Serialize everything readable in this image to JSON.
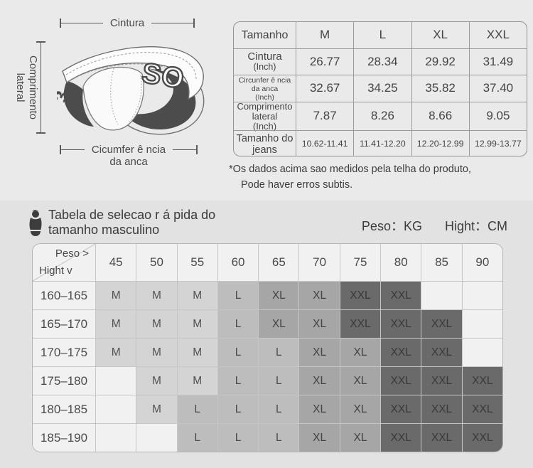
{
  "colors": {
    "page_bg_top": "#eaeaea",
    "page_bg_bottom": "#e2e2e2",
    "line_color": "#5a5a5a",
    "table_border": "#9b9b9b",
    "grid_border": "#c6c6c6",
    "size_m_bg": "#d4d4d4",
    "size_l_bg": "#bdbdbd",
    "size_xl_bg": "#a6a6a6",
    "size_xxl_bg": "#6a6a6a",
    "empty_cell_bg": "#f1f1f1",
    "dark_band": "#4c4c4c"
  },
  "diagram": {
    "waist_label": "Cintura",
    "side_length_label": [
      "Comprimento",
      "lateral"
    ],
    "hip_label": [
      "Cicumfer ê ncia",
      "da anca"
    ],
    "waistband_logo": "SO",
    "waistband_left_mark": "3"
  },
  "size_table": {
    "header": [
      "Tamanho",
      "M",
      "L",
      "XL",
      "XXL"
    ],
    "rows": [
      {
        "label_lines": [
          "Cintura",
          "(Inch)"
        ],
        "values": [
          "26.77",
          "28.34",
          "29.92",
          "31.49"
        ]
      },
      {
        "label_lines": [
          "Circunfer ê ncia",
          "da anca",
          "(Inch)"
        ],
        "values": [
          "32.67",
          "34.25",
          "35.82",
          "37.40"
        ]
      },
      {
        "label_lines": [
          "Comprimento",
          "lateral",
          "(Inch)"
        ],
        "values": [
          "7.87",
          "8.26",
          "8.66",
          "9.05"
        ]
      },
      {
        "label_lines": [
          "Tamanho do",
          "jeans"
        ],
        "values": [
          "10.62-11.41",
          "11.41-12.20",
          "12.20-12.99",
          "12.99-13.77"
        ]
      }
    ],
    "footnote_lines": [
      "*Os dados acima sao medidos pela telha do produto,",
      "Pode haver erros subtis."
    ]
  },
  "selection": {
    "title_lines": [
      "Tabela de selecao r á pida do",
      "tamanho masculino"
    ],
    "units": [
      {
        "label": "Peso：",
        "value": "KG"
      },
      {
        "label": "Hight：",
        "value": "CM"
      }
    ],
    "grid": {
      "corner": {
        "top": "Peso >",
        "bottom": "Hight v"
      },
      "weights": [
        "45",
        "50",
        "55",
        "60",
        "65",
        "70",
        "75",
        "80",
        "85",
        "90"
      ],
      "rows": [
        {
          "height": "160–165",
          "cells": [
            "M",
            "M",
            "M",
            "L",
            "XL",
            "XL",
            "XXL",
            "XXL",
            "",
            ""
          ]
        },
        {
          "height": "165–170",
          "cells": [
            "M",
            "M",
            "M",
            "L",
            "XL",
            "XL",
            "XXL",
            "XXL",
            "XXL",
            ""
          ]
        },
        {
          "height": "170–175",
          "cells": [
            "M",
            "M",
            "M",
            "L",
            "L",
            "XL",
            "XL",
            "XXL",
            "XXL",
            ""
          ]
        },
        {
          "height": "175–180",
          "cells": [
            "",
            "M",
            "M",
            "L",
            "L",
            "XL",
            "XL",
            "XXL",
            "XXL",
            "XXL"
          ]
        },
        {
          "height": "180–185",
          "cells": [
            "",
            "M",
            "L",
            "L",
            "L",
            "XL",
            "XL",
            "XXL",
            "XXL",
            "XXL"
          ]
        },
        {
          "height": "185–190",
          "cells": [
            "",
            "",
            "L",
            "L",
            "L",
            "XL",
            "XL",
            "XXL",
            "XXL",
            "XXL"
          ]
        }
      ]
    }
  },
  "chart_data": [
    {
      "type": "table",
      "title": "Tamanho (size measurements)",
      "columns": [
        "Tamanho",
        "M",
        "L",
        "XL",
        "XXL"
      ],
      "rows": [
        [
          "Cintura (Inch)",
          26.77,
          28.34,
          29.92,
          31.49
        ],
        [
          "Circunfer ê ncia da anca (Inch)",
          32.67,
          34.25,
          35.82,
          37.4
        ],
        [
          "Comprimento lateral (Inch)",
          7.87,
          8.26,
          8.66,
          9.05
        ],
        [
          "Tamanho do jeans",
          "10.62-11.41",
          "11.41-12.20",
          "12.20-12.99",
          "12.99-13.77"
        ]
      ]
    },
    {
      "type": "table",
      "title": "Tabela de selecao r á pida do tamanho masculino",
      "xlabel": "Peso (KG)",
      "ylabel": "Hight (CM)",
      "columns": [
        "Hight",
        "45",
        "50",
        "55",
        "60",
        "65",
        "70",
        "75",
        "80",
        "85",
        "90"
      ],
      "rows": [
        [
          "160–165",
          "M",
          "M",
          "M",
          "L",
          "XL",
          "XL",
          "XXL",
          "XXL",
          "",
          ""
        ],
        [
          "165–170",
          "M",
          "M",
          "M",
          "L",
          "XL",
          "XL",
          "XXL",
          "XXL",
          "XXL",
          ""
        ],
        [
          "170–175",
          "M",
          "M",
          "M",
          "L",
          "L",
          "XL",
          "XL",
          "XXL",
          "XXL",
          ""
        ],
        [
          "175–180",
          "",
          "M",
          "M",
          "L",
          "L",
          "XL",
          "XL",
          "XXL",
          "XXL",
          "XXL"
        ],
        [
          "180–185",
          "",
          "M",
          "L",
          "L",
          "L",
          "XL",
          "XL",
          "XXL",
          "XXL",
          "XXL"
        ],
        [
          "185–190",
          "",
          "",
          "L",
          "L",
          "L",
          "XL",
          "XL",
          "XXL",
          "XXL",
          "XXL"
        ]
      ]
    }
  ]
}
